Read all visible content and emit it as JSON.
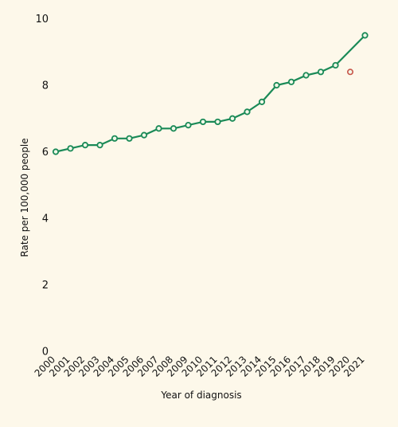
{
  "chart_data": {
    "type": "line",
    "title": "",
    "xlabel": "Year of diagnosis",
    "ylabel": "Rate per 100,000 people",
    "ylim": [
      0,
      10
    ],
    "yticks": [
      0,
      2,
      4,
      6,
      8,
      10
    ],
    "grid": false,
    "colors": {
      "line": "#1a8a57",
      "marker_fill": "#f1f8e8",
      "outlier": "#c8564a",
      "background": "#fdf8ea"
    },
    "x": [
      "2000",
      "2001",
      "2002",
      "2003",
      "2004",
      "2005",
      "2006",
      "2007",
      "2008",
      "2009",
      "2010",
      "2011",
      "2012",
      "2013",
      "2014",
      "2015",
      "2016",
      "2017",
      "2018",
      "2019",
      "2020",
      "2021"
    ],
    "series": [
      {
        "values": [
          6.0,
          6.1,
          6.2,
          6.2,
          6.4,
          6.4,
          6.5,
          6.7,
          6.7,
          6.8,
          6.9,
          6.9,
          7.0,
          7.2,
          7.5,
          8.0,
          8.1,
          8.3,
          8.4,
          8.6,
          null,
          9.5
        ]
      }
    ],
    "outliers": [
      {
        "x": "2020",
        "value": 8.4
      }
    ]
  }
}
